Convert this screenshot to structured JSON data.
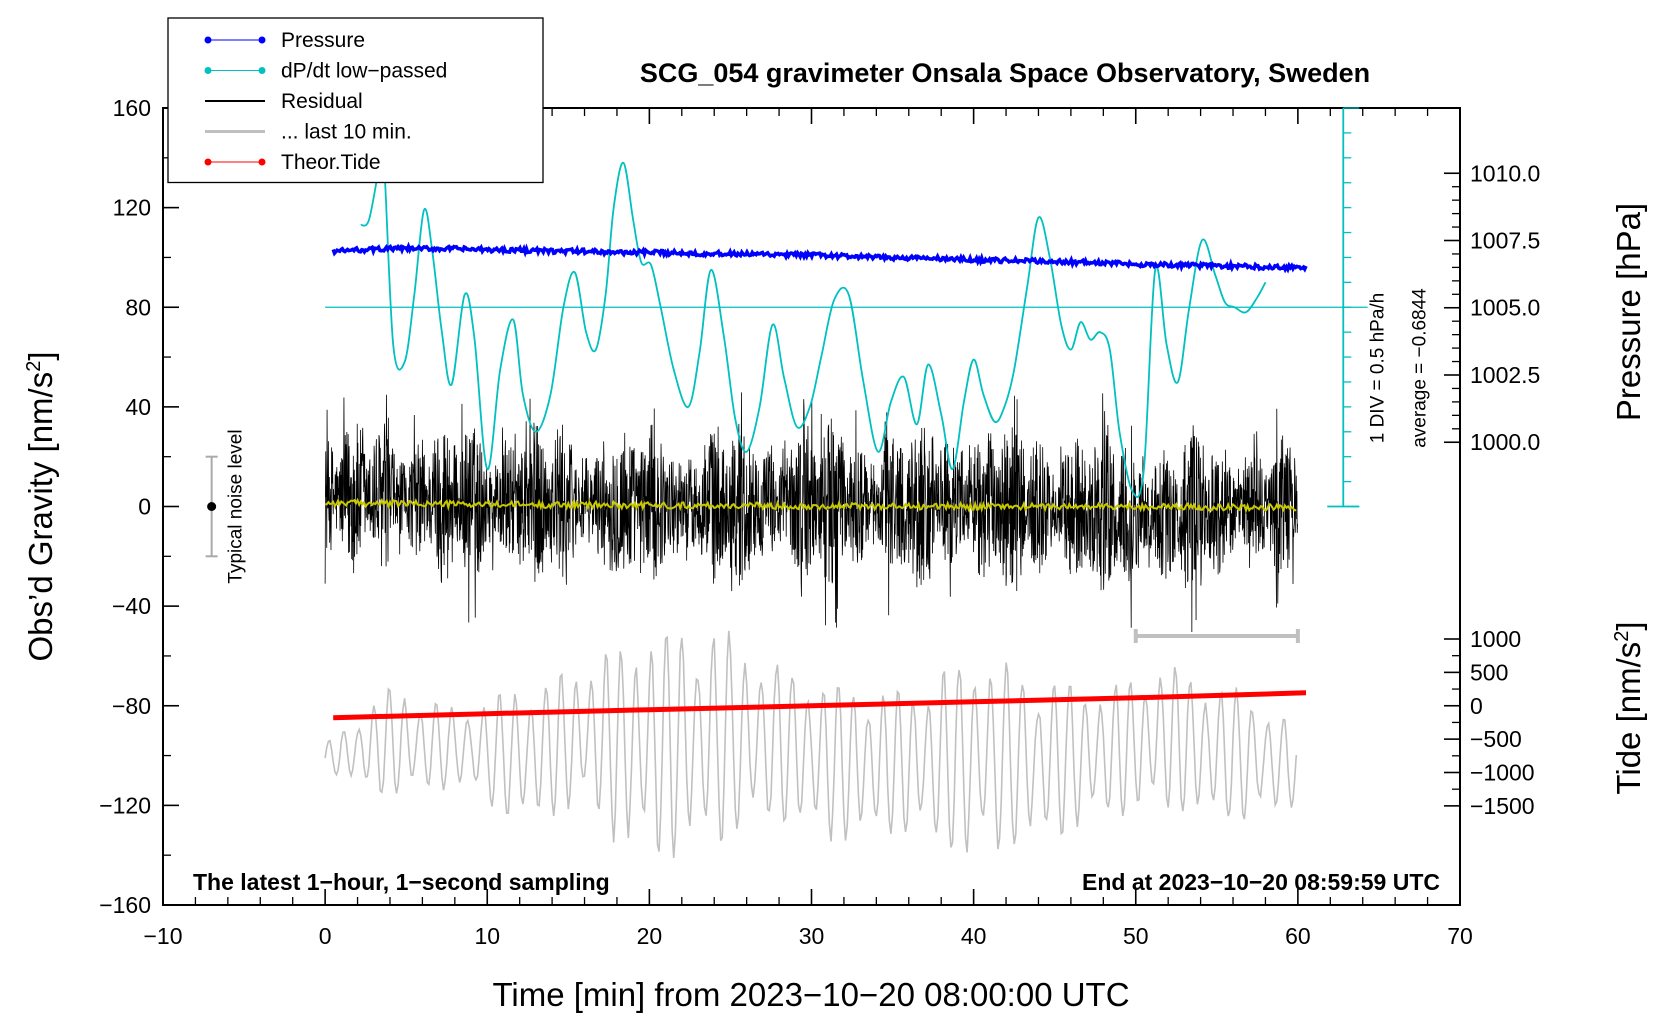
{
  "chart_data": {
    "type": "line",
    "title": "SCG_054 gravimeter Onsala Space Observatory, Sweden",
    "xlabel": "Time [min] from 2023−10−20 08:00:00 UTC",
    "ylabel": "Obs’d Gravity [nm/s²]",
    "ylabel_parts": {
      "main": "Obs’d Gravity [nm/s",
      "sup": "2",
      "close": "]"
    },
    "y2label": "Pressure [hPa]",
    "y3label": "Tide [nm/s²]",
    "y3label_parts": {
      "main": "Tide [nm/s",
      "sup": "2",
      "close": "]"
    },
    "xlim": [
      -10,
      70
    ],
    "ylim": [
      -160,
      160
    ],
    "xticks": [
      -10,
      0,
      10,
      20,
      30,
      40,
      50,
      60,
      70
    ],
    "xtick_labels": [
      "−10",
      "0",
      "10",
      "20",
      "30",
      "40",
      "50",
      "60",
      "70"
    ],
    "yticks": [
      -160,
      -120,
      -80,
      -40,
      0,
      40,
      80,
      120,
      160
    ],
    "ytick_labels": [
      "−160",
      "−120",
      "−80",
      "−40",
      "0",
      "40",
      "80",
      "120",
      "160"
    ],
    "pressure_axis": {
      "ticks": [
        1000.0,
        1002.5,
        1005.0,
        1007.5,
        1010.0
      ],
      "tick_labels": [
        "1000.0",
        "1002.5",
        "1005.0",
        "1007.5",
        "1010.0"
      ],
      "gravity_at_1000": 25.8,
      "gravity_per_hpa": 10.8
    },
    "tide_axis": {
      "ticks": [
        -1500,
        -1000,
        -500,
        0,
        500,
        1000
      ],
      "tick_labels": [
        "−1500",
        "−1000",
        "−500",
        "0",
        "500",
        "1000"
      ],
      "gravity_at_0": -80,
      "gravity_per_unit": 0.0268
    },
    "dpdt_scale": {
      "label_div": "1 DIV = 0.5 hPa/h",
      "label_avg": "average = −0.6844",
      "x": 62.8,
      "y_min": 0,
      "y_max": 160,
      "div": 10
    },
    "dpdt_reference_y": 80,
    "series": [
      {
        "name": "Pressure",
        "color": "#0000ff",
        "x": [
          0.5,
          2,
          4,
          6,
          8,
          10,
          12,
          14,
          16,
          18,
          20,
          22,
          24,
          26,
          28,
          30,
          32,
          34,
          36,
          38,
          40,
          42,
          44,
          46,
          48,
          50,
          52,
          54,
          56,
          58,
          60.5
        ],
        "y": [
          102.5,
          103.0,
          103.5,
          103.5,
          103.5,
          103.0,
          103.0,
          102.5,
          102.5,
          102.0,
          102.0,
          101.8,
          101.5,
          101.3,
          101.0,
          101.0,
          100.5,
          100.0,
          99.8,
          99.5,
          99.0,
          98.8,
          98.5,
          98.2,
          97.8,
          97.3,
          97.0,
          96.8,
          96.5,
          96.2,
          96.0
        ]
      },
      {
        "name": "dP/dt low−passed",
        "color": "#00c0c0",
        "x": [
          2.2,
          2.7,
          3.3,
          3.6,
          4.2,
          4.9,
          5.5,
          6.1,
          6.6,
          7.2,
          7.8,
          8.6,
          9.2,
          10.0,
          10.8,
          11.6,
          12.2,
          13.0,
          13.9,
          14.7,
          15.4,
          16.1,
          16.7,
          17.3,
          17.8,
          18.4,
          19.0,
          19.5,
          20.1,
          20.7,
          21.5,
          22.4,
          23.1,
          23.8,
          24.6,
          25.3,
          26.0,
          26.8,
          27.6,
          28.3,
          29.1,
          29.9,
          30.6,
          31.4,
          32.3,
          33.2,
          34.1,
          34.9,
          35.7,
          36.5,
          37.2,
          38.0,
          38.7,
          39.4,
          40.0,
          40.6,
          41.3,
          41.9,
          42.5,
          43.3,
          44.0,
          44.7,
          45.4,
          46.0,
          46.6,
          47.2,
          47.8,
          48.4,
          49.0,
          49.8,
          50.5,
          51.2,
          51.9,
          52.6,
          53.3,
          54.1,
          54.9,
          55.5,
          56.1,
          56.8,
          57.5,
          58.0
        ],
        "y": [
          113,
          115,
          135,
          142,
          65,
          58,
          85,
          119,
          103,
          70,
          49,
          85,
          68,
          15,
          55,
          75,
          45,
          30,
          45,
          80,
          94,
          70,
          63,
          85,
          120,
          138,
          115,
          98,
          97,
          80,
          55,
          40,
          62,
          95,
          68,
          35,
          22,
          40,
          73,
          52,
          32,
          40,
          60,
          83,
          85,
          50,
          22,
          42,
          52,
          33,
          57,
          37,
          15,
          42,
          59,
          45,
          34,
          40,
          55,
          88,
          116,
          100,
          73,
          63,
          74,
          67,
          70,
          63,
          30,
          6,
          15,
          95,
          65,
          50,
          80,
          107,
          93,
          82,
          80,
          78,
          84,
          90
        ]
      },
      {
        "name": "Residual",
        "color": "#000000",
        "x": [
          0,
          10,
          20,
          30,
          40,
          50,
          60
        ],
        "y_min": [
          -47,
          -57,
          -55,
          -58,
          -60,
          -62,
          -45
        ],
        "y_max": [
          55,
          60,
          57,
          60,
          62,
          54,
          45
        ]
      },
      {
        "name": "... last 10 min.",
        "color": "#c0c0c0",
        "x": [
          0,
          4,
          8,
          12,
          16,
          20,
          24,
          28,
          32,
          36,
          40,
          44,
          48,
          52,
          56,
          60
        ],
        "y_min": [
          -107,
          -120,
          -113,
          -130,
          -125,
          -148,
          -140,
          -130,
          -138,
          -135,
          -147,
          -138,
          -128,
          -125,
          -130,
          -122
        ],
        "y_max": [
          -95,
          -70,
          -80,
          -70,
          -60,
          -45,
          -45,
          -60,
          -68,
          -70,
          -55,
          -65,
          -70,
          -60,
          -70,
          -85
        ],
        "range_marker_x": [
          50,
          60
        ],
        "range_marker_y": -52
      },
      {
        "name": "Theor.Tide",
        "color": "#ff0000",
        "x": [
          0.5,
          10,
          20,
          30,
          40,
          50,
          60.5
        ],
        "y": [
          -84.8,
          -83.2,
          -81.6,
          -80.0,
          -78.4,
          -76.8,
          -74.8
        ]
      },
      {
        "name": "Smoothed residual",
        "color": "#c8c800",
        "x": [
          0,
          10,
          20,
          30,
          40,
          50,
          60
        ],
        "y": [
          1.5,
          0.8,
          0.5,
          0.2,
          0.0,
          0.0,
          -0.5
        ]
      }
    ],
    "noise_level": {
      "label": "Typical noise level",
      "x": -7,
      "y": 0,
      "y_low": -20,
      "y_high": 20
    },
    "bottom_left_text": "The latest 1−hour, 1−second sampling",
    "bottom_right_text": "End at 2023−10−20 08:59:59 UTC",
    "legend": {
      "placement": "top-left",
      "entries": [
        {
          "name": "Pressure",
          "color": "#0000ff",
          "style": "line-dots"
        },
        {
          "name": "dP/dt low−passed",
          "color": "#00c0c0",
          "style": "line-dots"
        },
        {
          "name": "Residual",
          "color": "#000000",
          "style": "line"
        },
        {
          "name": "... last 10 min.",
          "color": "#c0c0c0",
          "style": "line"
        },
        {
          "name": "Theor.Tide",
          "color": "#ff0000",
          "style": "line-dots"
        }
      ]
    }
  }
}
